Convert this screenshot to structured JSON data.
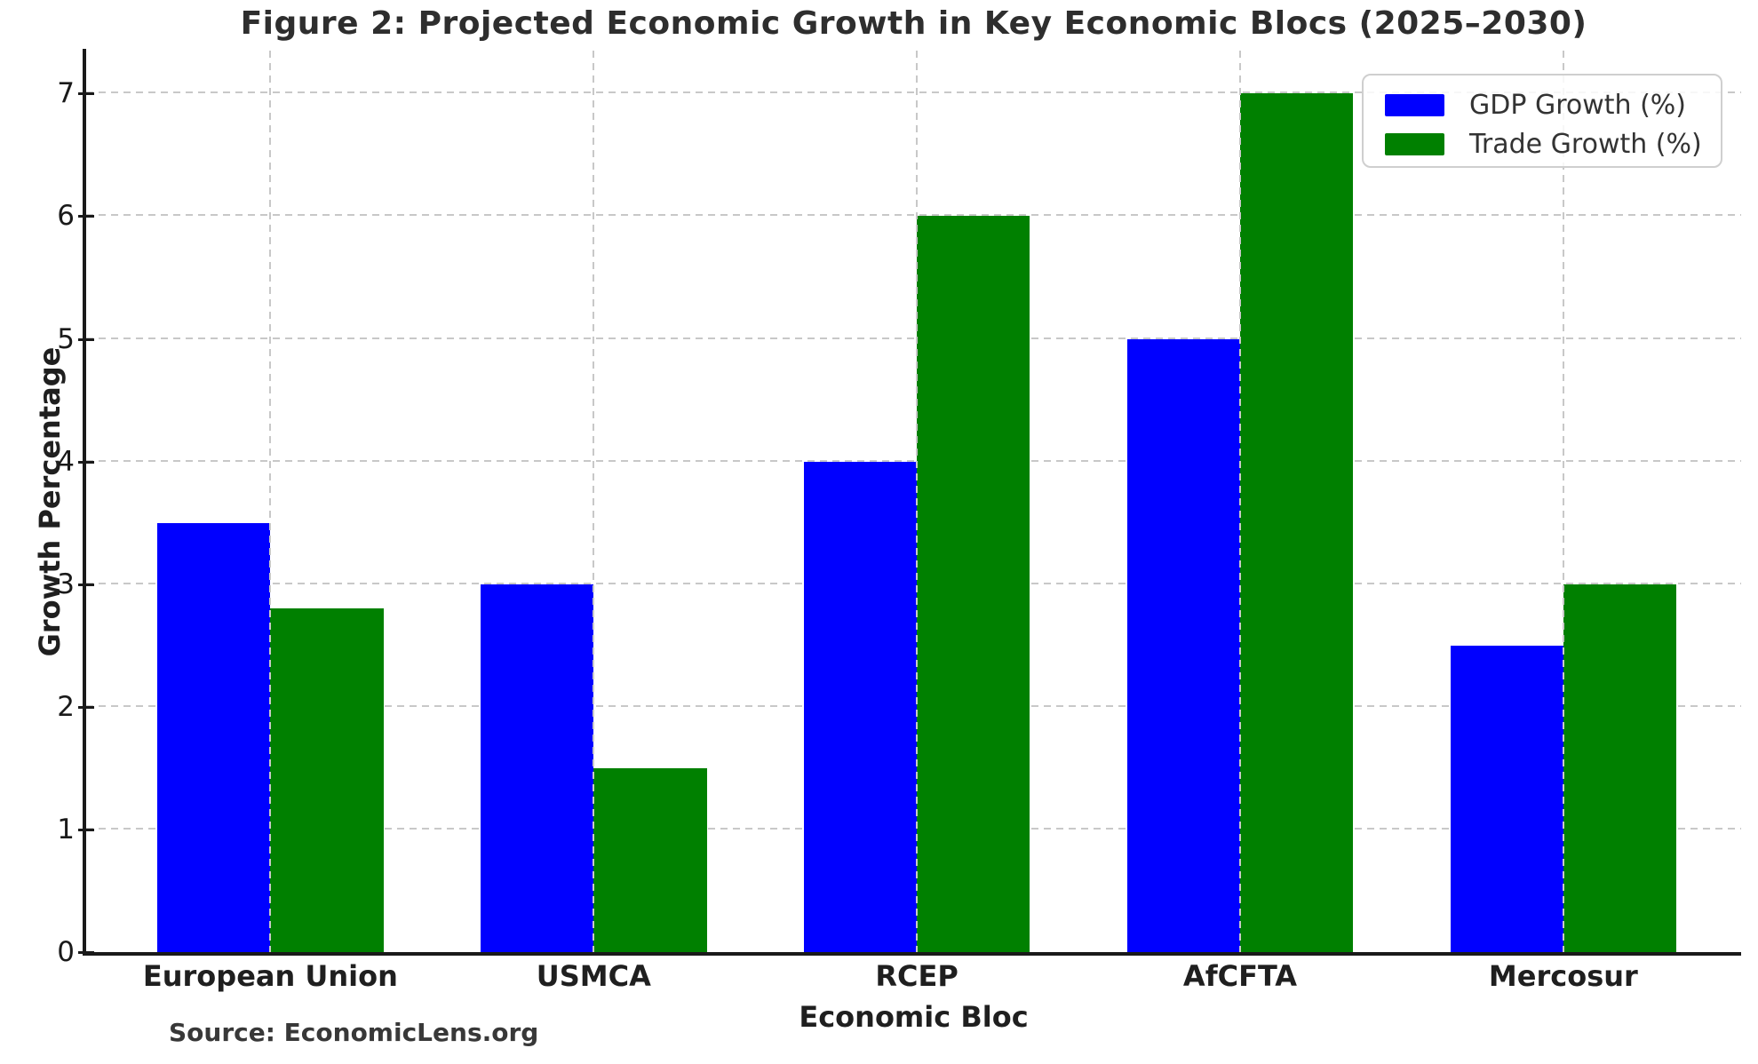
{
  "chart_data": {
    "type": "bar",
    "title": "Figure 2: Projected Economic Growth in Key Economic Blocs (2025–2030)",
    "xlabel": "Economic Bloc",
    "ylabel": "Growth Percentage",
    "source": "Source: EconomicLens.org",
    "categories": [
      "European Union",
      "USMCA",
      "RCEP",
      "AfCFTA",
      "Mercosur"
    ],
    "series": [
      {
        "name": "GDP Growth (%)",
        "color": "#0000ff",
        "values": [
          3.5,
          3.0,
          4.0,
          5.0,
          2.5
        ]
      },
      {
        "name": "Trade Growth (%)",
        "color": "#008000",
        "values": [
          2.8,
          1.5,
          6.0,
          7.0,
          3.0
        ]
      }
    ],
    "yticks": [
      0,
      1,
      2,
      3,
      4,
      5,
      6,
      7
    ],
    "ylim": [
      0,
      7.35
    ],
    "xlim": [
      -0.57,
      4.55
    ],
    "bar_width": 0.35,
    "grid": "both-dashed",
    "grid_color": "#c8c8c8",
    "axis_color": "#1a1a1a",
    "legend_position": "upper-right"
  }
}
